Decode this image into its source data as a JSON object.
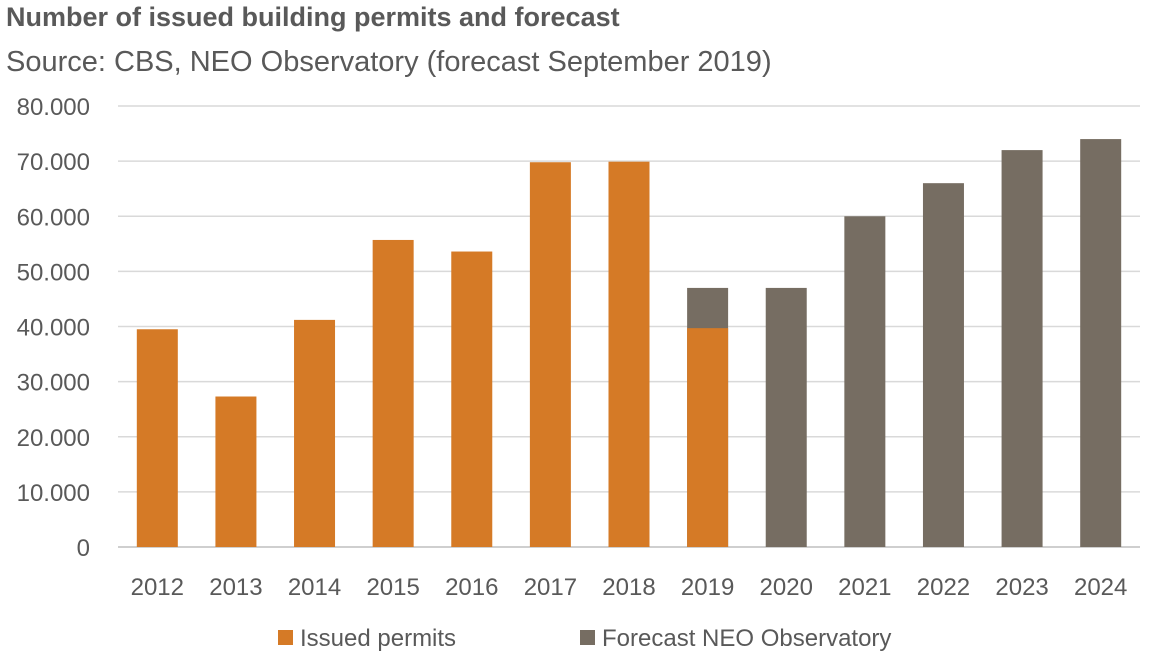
{
  "chart_data": {
    "type": "bar",
    "title": "Number of issued building permits and forecast",
    "subtitle": "Source: CBS, NEO Observatory (forecast September 2019)",
    "categories": [
      "2012",
      "2013",
      "2014",
      "2015",
      "2016",
      "2017",
      "2018",
      "2019",
      "2020",
      "2021",
      "2022",
      "2023",
      "2024"
    ],
    "series": [
      {
        "name": "Issued permits",
        "color": "#d57a26",
        "values": [
          39500,
          27300,
          41200,
          55700,
          53600,
          69800,
          69900,
          39700,
          null,
          null,
          null,
          null,
          null
        ]
      },
      {
        "name": "Forecast NEO Observatory",
        "color": "#766d62",
        "values": [
          null,
          null,
          null,
          null,
          null,
          null,
          null,
          47000,
          47000,
          60000,
          66000,
          72000,
          74000
        ]
      }
    ],
    "ylim": [
      0,
      80000
    ],
    "yticks": [
      0,
      10000,
      20000,
      30000,
      40000,
      50000,
      60000,
      70000,
      80000
    ],
    "ytick_labels": [
      "0",
      "10.000",
      "20.000",
      "30.000",
      "40.000",
      "50.000",
      "60.000",
      "70.000",
      "80.000"
    ],
    "grid": true,
    "legend": "bottom"
  }
}
